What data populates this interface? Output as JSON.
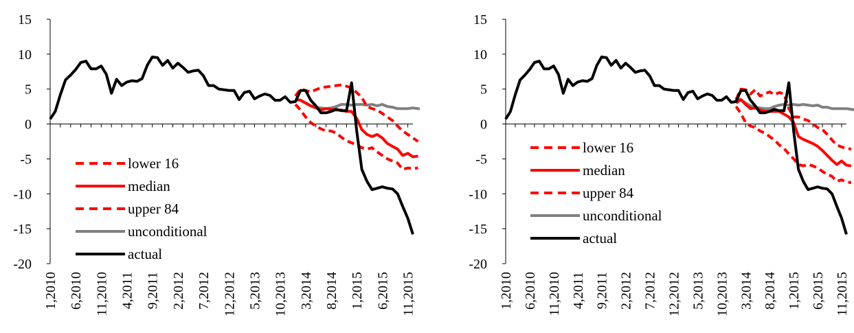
{
  "chart_data": [
    {
      "type": "line",
      "ylim": [
        -20,
        15
      ],
      "yticks": [
        -20,
        -15,
        -10,
        -5,
        0,
        5,
        10,
        15
      ],
      "x_tick_labels": [
        "1,2010",
        "6,2010",
        "11,2010",
        "4,2011",
        "9,2011",
        "2,2012",
        "7,2012",
        "12,2012",
        "5,2013",
        "10,2013",
        "3,2014",
        "8,2014",
        "1,2015",
        "6,2015",
        "11,2015"
      ],
      "x_tick_index": [
        0,
        5,
        10,
        15,
        20,
        25,
        30,
        35,
        40,
        45,
        50,
        55,
        60,
        65,
        70
      ],
      "legend_position": "lower-left",
      "series": [
        {
          "name": "lower 16",
          "style": "dashed",
          "color": "#ff0000",
          "start": 48,
          "values": [
            4.0,
            5.0,
            4.8,
            4.6,
            4.9,
            5.2,
            5.3,
            5.4,
            5.5,
            5.6,
            5.4,
            5.2,
            4.5,
            3.8,
            2.5,
            2.2,
            2.0,
            1.5,
            1.0,
            0.5,
            -0.3,
            -1.0,
            -1.5,
            -2.0,
            -2.5
          ]
        },
        {
          "name": "median",
          "style": "solid",
          "color": "#ff0000",
          "start": 48,
          "values": [
            3.5,
            3.4,
            3.0,
            2.6,
            2.3,
            2.0,
            2.2,
            2.1,
            2.0,
            2.0,
            1.8,
            1.8,
            0.8,
            -0.8,
            -1.5,
            -1.8,
            -1.5,
            -2.0,
            -2.8,
            -3.2,
            -3.6,
            -4.5,
            -4.2,
            -4.7,
            -4.6
          ]
        },
        {
          "name": "upper 84",
          "style": "dashed",
          "color": "#ff0000",
          "start": 48,
          "values": [
            2.8,
            2.0,
            1.0,
            0.2,
            -0.3,
            -0.7,
            -1.0,
            -1.0,
            -1.3,
            -1.9,
            -2.4,
            -2.7,
            -3.0,
            -3.4,
            -3.6,
            -3.4,
            -4.0,
            -4.5,
            -5.0,
            -5.3,
            -5.6,
            -6.5,
            -6.3,
            -6.4,
            -6.3
          ]
        },
        {
          "name": "unconditional",
          "style": "solid",
          "color": "#808080",
          "start": 48,
          "values": [
            3.5,
            3.4,
            3.0,
            2.6,
            2.4,
            2.3,
            2.2,
            2.3,
            2.5,
            2.8,
            2.8,
            2.7,
            2.8,
            2.8,
            2.7,
            2.8,
            2.6,
            2.8,
            2.5,
            2.4,
            2.2,
            2.2,
            2.2,
            2.3,
            2.2,
            2.1
          ]
        },
        {
          "name": "actual",
          "style": "solid",
          "color": "#000000",
          "start": 0,
          "values": [
            0.7,
            1.8,
            4.2,
            6.3,
            7.0,
            7.8,
            8.8,
            9.0,
            7.9,
            7.9,
            8.3,
            7.1,
            4.4,
            6.4,
            5.5,
            6.0,
            6.2,
            6.1,
            6.5,
            8.4,
            9.6,
            9.5,
            8.4,
            9.1,
            8.0,
            8.7,
            8.1,
            7.4,
            7.6,
            7.7,
            6.9,
            5.5,
            5.5,
            5.0,
            4.9,
            4.8,
            4.8,
            3.5,
            4.5,
            4.7,
            3.6,
            4.0,
            4.3,
            4.1,
            3.4,
            3.4,
            3.9,
            3.1,
            3.2,
            4.8,
            4.8,
            3.4,
            2.6,
            1.6,
            1.6,
            1.8,
            2.1,
            1.9,
            1.9,
            5.9,
            -1.0,
            -6.5,
            -8.2,
            -9.4,
            -9.2,
            -9.0,
            -9.2,
            -9.3,
            -10.0,
            -11.8,
            -13.5,
            -15.8
          ]
        }
      ]
    },
    {
      "type": "line",
      "ylim": [
        -20,
        15
      ],
      "yticks": [
        -20,
        -15,
        -10,
        -5,
        0,
        5,
        10,
        15
      ],
      "x_tick_labels": [
        "1,2010",
        "6,2010",
        "11,2010",
        "4,2011",
        "9,2011",
        "2,2012",
        "7,2012",
        "12,2012",
        "5,2013",
        "10,2013",
        "3,2014",
        "8,2014",
        "1,2015",
        "6,2015",
        "11,2015"
      ],
      "x_tick_index": [
        0,
        5,
        10,
        15,
        20,
        25,
        30,
        35,
        40,
        45,
        50,
        55,
        60,
        65,
        70
      ],
      "legend_position": "lower-left",
      "series": [
        {
          "name": "lower 16",
          "style": "dashed",
          "color": "#ff0000",
          "start": 48,
          "values": [
            3.5,
            5.0,
            4.9,
            4.3,
            4.9,
            4.0,
            4.3,
            4.6,
            4.2,
            4.5,
            4.3,
            2.2,
            1.0,
            1.0,
            0.7,
            0.5,
            0.0,
            -0.5,
            -0.8,
            -1.5,
            -2.3,
            -3.0,
            -3.3,
            -3.5,
            -3.6
          ]
        },
        {
          "name": "median",
          "style": "solid",
          "color": "#ff0000",
          "start": 48,
          "values": [
            3.0,
            3.5,
            2.8,
            2.2,
            2.3,
            2.0,
            1.8,
            1.8,
            1.8,
            1.8,
            1.4,
            1.0,
            0.2,
            -1.8,
            -2.2,
            -2.5,
            -2.8,
            -3.2,
            -3.8,
            -4.5,
            -5.2,
            -5.8,
            -5.3,
            -5.9,
            -6.0
          ]
        },
        {
          "name": "upper 84",
          "style": "dashed",
          "color": "#ff0000",
          "start": 48,
          "values": [
            2.5,
            1.5,
            0.2,
            -0.3,
            -0.5,
            -1.0,
            -1.3,
            -1.8,
            -2.3,
            -3.0,
            -3.5,
            -4.3,
            -5.0,
            -5.8,
            -6.0,
            -5.8,
            -6.0,
            -6.3,
            -6.8,
            -7.2,
            -7.5,
            -8.2,
            -8.0,
            -8.3,
            -8.4
          ]
        },
        {
          "name": "unconditional",
          "style": "solid",
          "color": "#808080",
          "start": 48,
          "values": [
            3.6,
            3.5,
            3.0,
            2.6,
            2.4,
            2.3,
            2.2,
            2.2,
            2.5,
            2.7,
            2.8,
            2.7,
            2.8,
            2.7,
            2.8,
            2.7,
            2.6,
            2.7,
            2.4,
            2.4,
            2.2,
            2.2,
            2.2,
            2.2,
            2.1,
            2.0
          ]
        },
        {
          "name": "actual",
          "style": "solid",
          "color": "#000000",
          "start": 0,
          "values": [
            0.7,
            1.8,
            4.2,
            6.3,
            7.0,
            7.8,
            8.8,
            9.0,
            7.9,
            7.9,
            8.3,
            7.1,
            4.4,
            6.4,
            5.5,
            6.0,
            6.2,
            6.1,
            6.5,
            8.4,
            9.6,
            9.5,
            8.4,
            9.1,
            8.0,
            8.7,
            8.1,
            7.4,
            7.6,
            7.7,
            6.9,
            5.5,
            5.5,
            5.0,
            4.9,
            4.8,
            4.8,
            3.5,
            4.5,
            4.7,
            3.6,
            4.0,
            4.3,
            4.1,
            3.4,
            3.4,
            3.9,
            3.1,
            3.2,
            4.8,
            4.8,
            3.4,
            2.6,
            1.6,
            1.6,
            1.8,
            2.1,
            1.9,
            1.9,
            5.9,
            -1.0,
            -6.5,
            -8.2,
            -9.4,
            -9.2,
            -9.0,
            -9.2,
            -9.3,
            -10.0,
            -11.8,
            -13.5,
            -15.8
          ]
        }
      ]
    }
  ]
}
